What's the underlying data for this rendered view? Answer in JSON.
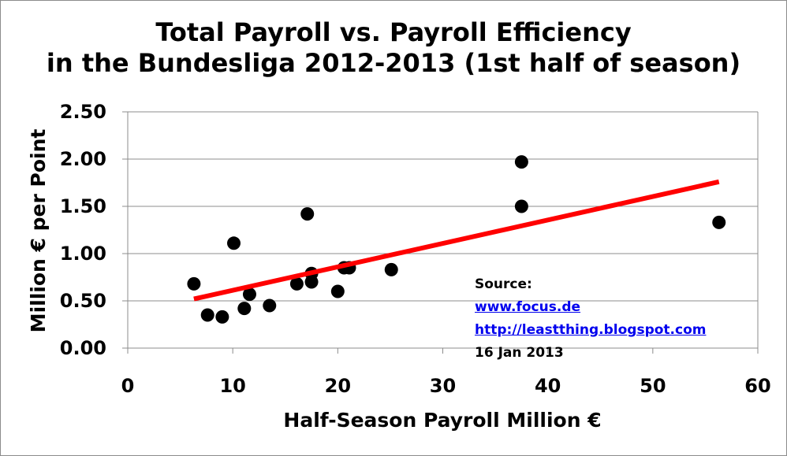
{
  "chart_data": {
    "type": "scatter",
    "title": [
      "Total Payroll vs. Payroll Efficiency",
      "in the Bundesliga 2012-2013 (1st half of season)"
    ],
    "xlabel": "Half-Season Payroll Million €",
    "ylabel": "Million € per Point",
    "xlim": [
      0,
      60
    ],
    "ylim": [
      0,
      2.5
    ],
    "xticks": [
      "0",
      "10",
      "20",
      "30",
      "40",
      "50",
      "60"
    ],
    "yticks": [
      "0.00",
      "0.50",
      "1.00",
      "1.50",
      "2.00",
      "2.50"
    ],
    "grid": "horizontal",
    "points": [
      {
        "x": 6.3,
        "y": 0.68
      },
      {
        "x": 7.6,
        "y": 0.35
      },
      {
        "x": 9.0,
        "y": 0.33
      },
      {
        "x": 10.1,
        "y": 1.11
      },
      {
        "x": 11.1,
        "y": 0.42
      },
      {
        "x": 11.6,
        "y": 0.57
      },
      {
        "x": 13.5,
        "y": 0.45
      },
      {
        "x": 16.1,
        "y": 0.68
      },
      {
        "x": 17.1,
        "y": 1.42
      },
      {
        "x": 17.5,
        "y": 0.7
      },
      {
        "x": 17.5,
        "y": 0.79
      },
      {
        "x": 20.0,
        "y": 0.6
      },
      {
        "x": 20.6,
        "y": 0.85
      },
      {
        "x": 21.1,
        "y": 0.85
      },
      {
        "x": 25.1,
        "y": 0.83
      },
      {
        "x": 37.5,
        "y": 1.97
      },
      {
        "x": 37.5,
        "y": 1.5
      },
      {
        "x": 56.3,
        "y": 1.33
      }
    ],
    "trendline": {
      "x": [
        6.3,
        56.3
      ],
      "y": [
        0.52,
        1.76
      ]
    },
    "colors": {
      "points": "#000000",
      "trendline": "#ff0000",
      "grid": "#8c8c8c"
    }
  },
  "source": {
    "label": "Source:",
    "link1": "www.focus.de",
    "link2": "http://leastthing.blogspot.com",
    "date": "16 Jan 2013"
  }
}
